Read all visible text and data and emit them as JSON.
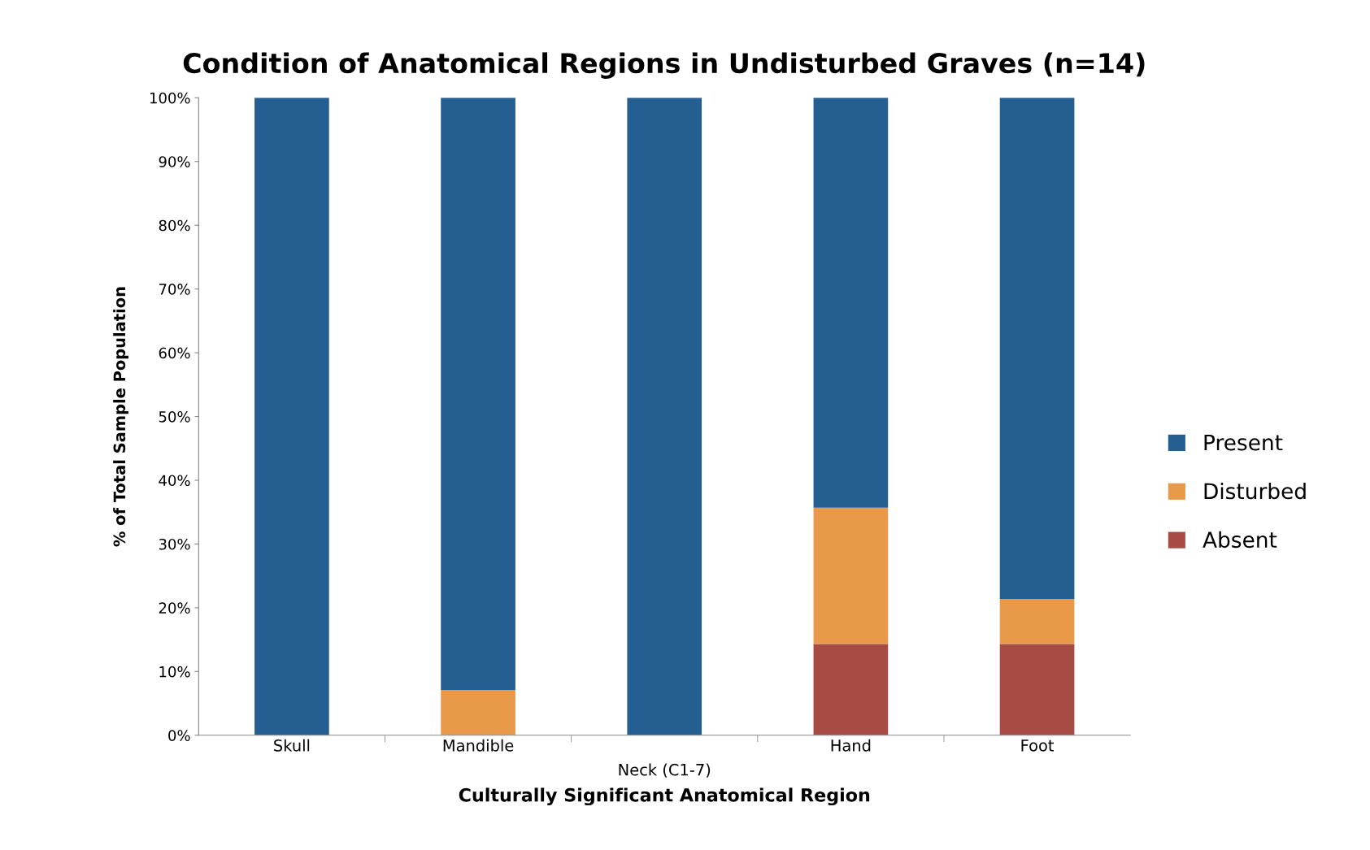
{
  "chart_data": {
    "type": "bar",
    "title": "Condition of Anatomical Regions in Undisturbed Graves (n=14)",
    "xlabel": "Culturally Significant Anatomical Region",
    "ylabel": "% of Total Sample Population",
    "categories": [
      "Skull",
      "Mandible",
      "Neck (C1-7)",
      "Hand",
      "Foot"
    ],
    "stacked": true,
    "series": [
      {
        "name": "Absent",
        "color": "#a84b45",
        "values": [
          0,
          0,
          0,
          14.3,
          14.3
        ]
      },
      {
        "name": "Disturbed",
        "color": "#e8994a",
        "values": [
          0,
          7.1,
          0,
          21.4,
          7.1
        ]
      },
      {
        "name": "Present",
        "color": "#255e91",
        "values": [
          100,
          92.9,
          100,
          64.3,
          78.6
        ]
      }
    ],
    "ylim": [
      0,
      100
    ],
    "yticks": [
      {
        "value": 0,
        "label": "0%"
      },
      {
        "value": 10,
        "label": "10%"
      },
      {
        "value": 20,
        "label": "20%"
      },
      {
        "value": 30,
        "label": "30%"
      },
      {
        "value": 40,
        "label": "40%"
      },
      {
        "value": 50,
        "label": "50%"
      },
      {
        "value": 60,
        "label": "60%"
      },
      {
        "value": 70,
        "label": "70%"
      },
      {
        "value": 80,
        "label": "80%"
      },
      {
        "value": 90,
        "label": "90%"
      },
      {
        "value": 100,
        "label": "100%"
      }
    ],
    "grid": false,
    "legend": "right"
  }
}
